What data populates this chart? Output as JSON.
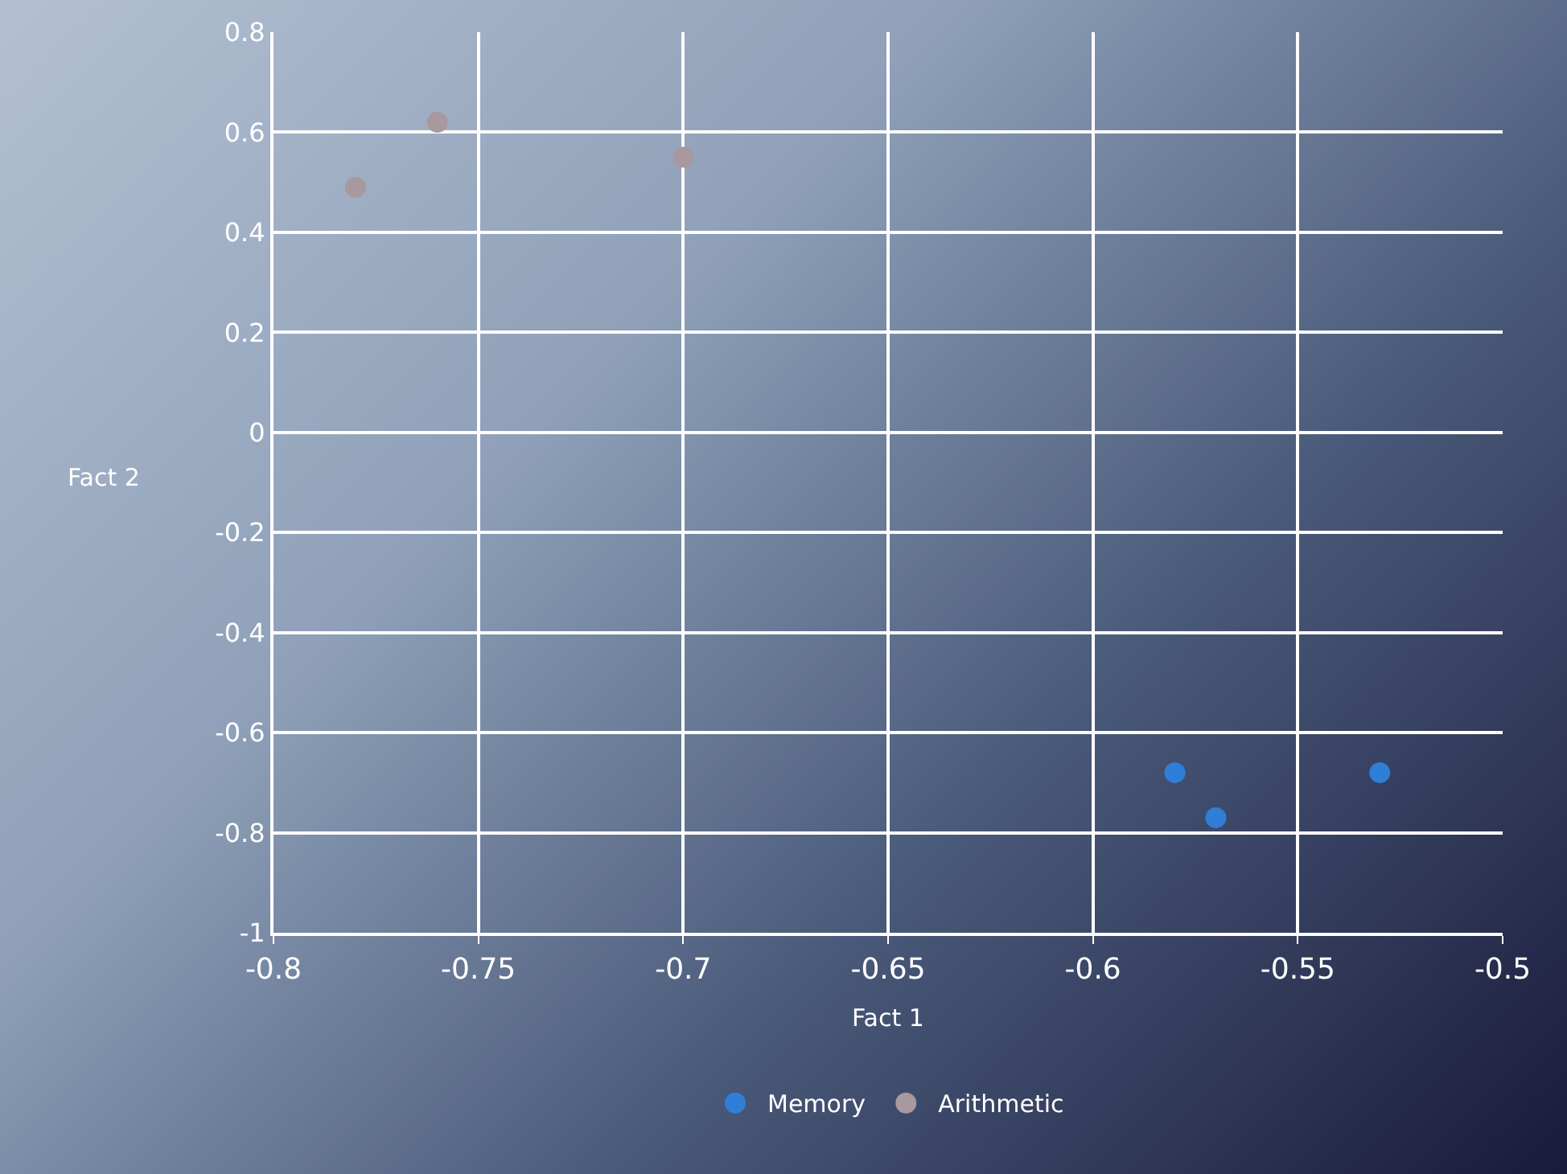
{
  "chart_data": {
    "type": "scatter",
    "xlabel": "Fact 1",
    "ylabel": "Fact 2",
    "xlim": [
      -0.8,
      -0.5
    ],
    "xticks": [
      -0.8,
      -0.75,
      -0.7,
      -0.65,
      -0.6,
      -0.55,
      -0.5
    ],
    "ylim": [
      -1,
      0.8
    ],
    "yticks": [
      -1,
      -0.8,
      -0.6,
      -0.4,
      -0.2,
      0,
      0.2,
      0.4,
      0.6,
      0.8
    ],
    "grid": true,
    "legend": "bottom",
    "marker": "circle",
    "series": [
      {
        "name": "Memory",
        "color": "#2f7fd8",
        "x": [
          -0.58,
          -0.57,
          -0.53
        ],
        "values": [
          -0.68,
          -0.77,
          -0.68
        ]
      },
      {
        "name": "Arithmetic",
        "color": "#a8989f",
        "x": [
          -0.78,
          -0.76,
          -0.7
        ],
        "values": [
          0.49,
          0.62,
          0.55
        ]
      }
    ]
  }
}
